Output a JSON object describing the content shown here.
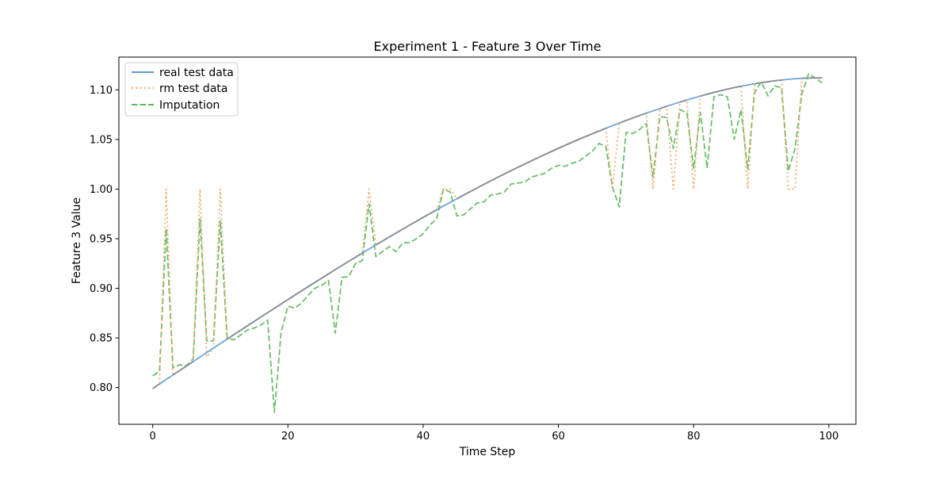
{
  "chart_data": {
    "type": "line",
    "title": "Experiment 1 - Feature 3 Over Time",
    "xlabel": "Time Step",
    "ylabel": "Feature 3 Value",
    "xlim": [
      -5,
      104
    ],
    "ylim": [
      0.763,
      1.133
    ],
    "xticks": [
      0,
      20,
      40,
      60,
      80,
      100
    ],
    "yticks": [
      0.8,
      0.85,
      0.9,
      0.95,
      1.0,
      1.05,
      1.1
    ],
    "grid": false,
    "legend_position": "top-left",
    "x": [
      0,
      1,
      2,
      3,
      4,
      5,
      6,
      7,
      8,
      9,
      10,
      11,
      12,
      13,
      14,
      15,
      16,
      17,
      18,
      19,
      20,
      21,
      22,
      23,
      24,
      25,
      26,
      27,
      28,
      29,
      30,
      31,
      32,
      33,
      34,
      35,
      36,
      37,
      38,
      39,
      40,
      41,
      42,
      43,
      44,
      45,
      46,
      47,
      48,
      49,
      50,
      51,
      52,
      53,
      54,
      55,
      56,
      57,
      58,
      59,
      60,
      61,
      62,
      63,
      64,
      65,
      66,
      67,
      68,
      69,
      70,
      71,
      72,
      73,
      74,
      75,
      76,
      77,
      78,
      79,
      80,
      81,
      82,
      83,
      84,
      85,
      86,
      87,
      88,
      89,
      90,
      91,
      92,
      93,
      94,
      95,
      96,
      97,
      98,
      99
    ],
    "series": [
      {
        "name": "real test data",
        "color": "#5b9bd5",
        "style": "solid",
        "values": [
          0.799,
          0.8036,
          0.8081,
          0.8126,
          0.8172,
          0.8217,
          0.8262,
          0.8307,
          0.8353,
          0.8398,
          0.8443,
          0.8488,
          0.8533,
          0.8577,
          0.8622,
          0.8666,
          0.8711,
          0.8755,
          0.8799,
          0.8843,
          0.8887,
          0.893,
          0.8974,
          0.9017,
          0.906,
          0.9103,
          0.9145,
          0.9188,
          0.923,
          0.9272,
          0.9313,
          0.9355,
          0.9396,
          0.9437,
          0.9477,
          0.9518,
          0.9558,
          0.9597,
          0.9637,
          0.9676,
          0.9715,
          0.9753,
          0.9791,
          0.9829,
          0.9866,
          0.9903,
          0.994,
          0.9976,
          1.0012,
          1.0048,
          1.0083,
          1.0118,
          1.0152,
          1.0186,
          1.0219,
          1.0252,
          1.0285,
          1.0317,
          1.0349,
          1.038,
          1.0411,
          1.0441,
          1.0471,
          1.05,
          1.0529,
          1.0557,
          1.0585,
          1.0612,
          1.0639,
          1.0665,
          1.0691,
          1.0716,
          1.0741,
          1.0765,
          1.0788,
          1.0811,
          1.0834,
          1.0856,
          1.0877,
          1.0898,
          1.0918,
          1.0937,
          1.0956,
          1.0974,
          1.0991,
          1.1007,
          1.1022,
          1.1036,
          1.1049,
          1.1061,
          1.1072,
          1.1082,
          1.1091,
          1.1099,
          1.1106,
          1.1112,
          1.1116,
          1.1119,
          1.112,
          1.112
        ]
      },
      {
        "name": "rm test data",
        "color": "#f5a05a",
        "style": "dotted",
        "values": [
          0.799,
          0.8036,
          1.0,
          0.8126,
          0.8172,
          0.8217,
          0.8262,
          1.0,
          0.8307,
          0.8398,
          1.0,
          0.8488,
          0.8533,
          0.8577,
          0.8622,
          0.8666,
          0.8711,
          0.8755,
          0.8799,
          0.8843,
          0.8887,
          0.893,
          0.8974,
          0.9017,
          0.906,
          0.9103,
          0.9145,
          0.9188,
          0.923,
          0.9272,
          0.9313,
          0.9355,
          1.0,
          0.9437,
          0.9477,
          0.9518,
          0.9558,
          0.9597,
          0.9637,
          0.9676,
          0.9715,
          0.9753,
          0.9791,
          1.0,
          1.0,
          0.9903,
          0.994,
          0.9976,
          1.0012,
          1.0048,
          1.0083,
          1.0118,
          1.0152,
          1.0186,
          1.0219,
          1.0252,
          1.0285,
          1.0317,
          1.0349,
          1.038,
          1.0411,
          1.0441,
          1.0471,
          1.05,
          1.0529,
          1.0557,
          1.0585,
          1.0612,
          1.0,
          1.0665,
          1.0691,
          1.0716,
          1.0741,
          1.0765,
          1.0,
          1.0811,
          1.0834,
          1.0,
          1.0877,
          1.0898,
          1.0,
          1.0937,
          1.0956,
          1.0974,
          1.0991,
          1.1007,
          1.1022,
          1.1036,
          1.0,
          1.1061,
          1.1072,
          1.1082,
          1.1091,
          1.1099,
          1.0,
          1.0,
          1.1116,
          1.1119,
          1.112,
          1.112
        ]
      },
      {
        "name": "Imputation",
        "color": "#5cb85c",
        "style": "dashed",
        "values": [
          0.812,
          0.816,
          0.96,
          0.82,
          0.823,
          0.822,
          0.829,
          0.97,
          0.847,
          0.847,
          0.968,
          0.85,
          0.848,
          0.853,
          0.858,
          0.86,
          0.863,
          0.868,
          0.775,
          0.856,
          0.882,
          0.88,
          0.885,
          0.893,
          0.9,
          0.903,
          0.908,
          0.855,
          0.911,
          0.912,
          0.925,
          0.928,
          0.985,
          0.932,
          0.937,
          0.942,
          0.937,
          0.946,
          0.946,
          0.95,
          0.955,
          0.964,
          0.97,
          1.0,
          0.997,
          0.973,
          0.974,
          0.98,
          0.986,
          0.987,
          0.994,
          0.995,
          0.997,
          1.005,
          1.006,
          1.007,
          1.012,
          1.014,
          1.016,
          1.021,
          1.024,
          1.023,
          1.026,
          1.028,
          1.033,
          1.038,
          1.046,
          1.043,
          1.002,
          0.982,
          1.057,
          1.056,
          1.06,
          1.066,
          1.012,
          1.073,
          1.072,
          1.041,
          1.08,
          1.077,
          1.021,
          1.077,
          1.021,
          1.093,
          1.095,
          1.093,
          1.05,
          1.08,
          1.02,
          1.097,
          1.108,
          1.094,
          1.104,
          1.102,
          1.018,
          1.041,
          1.096,
          1.116,
          1.112,
          1.107
        ]
      }
    ]
  }
}
